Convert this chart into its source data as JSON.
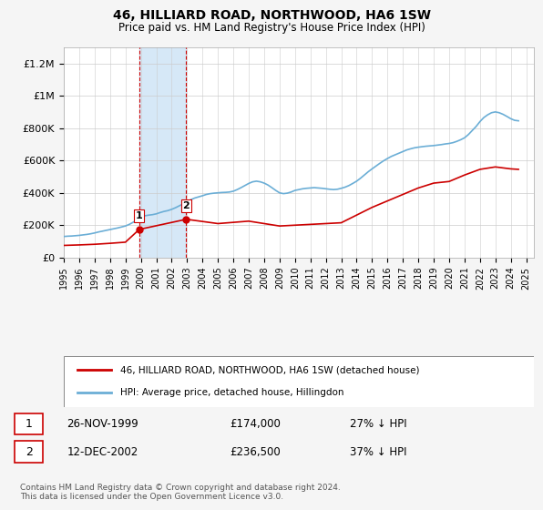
{
  "title": "46, HILLIARD ROAD, NORTHWOOD, HA6 1SW",
  "subtitle": "Price paid vs. HM Land Registry's House Price Index (HPI)",
  "ylabel_ticks": [
    "£0",
    "£200K",
    "£400K",
    "£600K",
    "£800K",
    "£1M",
    "£1.2M"
  ],
  "ytick_vals": [
    0,
    200000,
    400000,
    600000,
    800000,
    1000000,
    1200000
  ],
  "ylim": [
    0,
    1300000
  ],
  "xlim_start": 1995.0,
  "xlim_end": 2025.5,
  "transaction1": {
    "date_num": 1999.9,
    "price": 174000,
    "label": "1",
    "date_str": "26-NOV-1999",
    "price_str": "£174,000",
    "pct_str": "27% ↓ HPI"
  },
  "transaction2": {
    "date_num": 2002.95,
    "price": 236500,
    "label": "2",
    "date_str": "12-DEC-2002",
    "price_str": "£236,500",
    "pct_str": "37% ↓ HPI"
  },
  "shaded_x_start": 1999.9,
  "shaded_x_end": 2002.95,
  "legend_line1": "46, HILLIARD ROAD, NORTHWOOD, HA6 1SW (detached house)",
  "legend_line2": "HPI: Average price, detached house, Hillingdon",
  "footer": "Contains HM Land Registry data © Crown copyright and database right 2024.\nThis data is licensed under the Open Government Licence v3.0.",
  "hpi_color": "#6baed6",
  "price_color": "#cc0000",
  "shaded_color": "#d6e8f7",
  "shaded_border_color": "#cc0000",
  "background_color": "#f5f5f5",
  "plot_background": "#ffffff",
  "grid_color": "#cccccc",
  "hpi_data_x": [
    1995.0,
    1995.25,
    1995.5,
    1995.75,
    1996.0,
    1996.25,
    1996.5,
    1996.75,
    1997.0,
    1997.25,
    1997.5,
    1997.75,
    1998.0,
    1998.25,
    1998.5,
    1998.75,
    1999.0,
    1999.25,
    1999.5,
    1999.75,
    2000.0,
    2000.25,
    2000.5,
    2000.75,
    2001.0,
    2001.25,
    2001.5,
    2001.75,
    2002.0,
    2002.25,
    2002.5,
    2002.75,
    2003.0,
    2003.25,
    2003.5,
    2003.75,
    2004.0,
    2004.25,
    2004.5,
    2004.75,
    2005.0,
    2005.25,
    2005.5,
    2005.75,
    2006.0,
    2006.25,
    2006.5,
    2006.75,
    2007.0,
    2007.25,
    2007.5,
    2007.75,
    2008.0,
    2008.25,
    2008.5,
    2008.75,
    2009.0,
    2009.25,
    2009.5,
    2009.75,
    2010.0,
    2010.25,
    2010.5,
    2010.75,
    2011.0,
    2011.25,
    2011.5,
    2011.75,
    2012.0,
    2012.25,
    2012.5,
    2012.75,
    2013.0,
    2013.25,
    2013.5,
    2013.75,
    2014.0,
    2014.25,
    2014.5,
    2014.75,
    2015.0,
    2015.25,
    2015.5,
    2015.75,
    2016.0,
    2016.25,
    2016.5,
    2016.75,
    2017.0,
    2017.25,
    2017.5,
    2017.75,
    2018.0,
    2018.25,
    2018.5,
    2018.75,
    2019.0,
    2019.25,
    2019.5,
    2019.75,
    2020.0,
    2020.25,
    2020.5,
    2020.75,
    2021.0,
    2021.25,
    2021.5,
    2021.75,
    2022.0,
    2022.25,
    2022.5,
    2022.75,
    2023.0,
    2023.25,
    2023.5,
    2023.75,
    2024.0,
    2024.25,
    2024.5
  ],
  "hpi_data_y": [
    130000,
    132000,
    133000,
    135000,
    137000,
    140000,
    143000,
    147000,
    152000,
    158000,
    163000,
    168000,
    173000,
    178000,
    183000,
    189000,
    195000,
    205000,
    218000,
    232000,
    248000,
    258000,
    262000,
    265000,
    270000,
    278000,
    285000,
    290000,
    298000,
    308000,
    320000,
    332000,
    345000,
    358000,
    368000,
    375000,
    382000,
    390000,
    395000,
    398000,
    400000,
    402000,
    403000,
    405000,
    410000,
    420000,
    432000,
    445000,
    458000,
    468000,
    472000,
    468000,
    460000,
    448000,
    432000,
    415000,
    400000,
    395000,
    398000,
    405000,
    415000,
    420000,
    425000,
    428000,
    430000,
    432000,
    430000,
    428000,
    425000,
    422000,
    420000,
    422000,
    428000,
    435000,
    445000,
    458000,
    472000,
    490000,
    510000,
    530000,
    548000,
    565000,
    582000,
    598000,
    612000,
    625000,
    635000,
    645000,
    655000,
    665000,
    672000,
    678000,
    682000,
    685000,
    688000,
    690000,
    692000,
    695000,
    698000,
    702000,
    705000,
    710000,
    718000,
    728000,
    740000,
    760000,
    785000,
    810000,
    840000,
    865000,
    882000,
    895000,
    900000,
    895000,
    885000,
    872000,
    858000,
    848000,
    845000
  ],
  "price_data_x": [
    1995.0,
    1996.0,
    1997.0,
    1998.0,
    1999.0,
    1999.9,
    2002.95,
    2005.0,
    2007.0,
    2009.0,
    2011.0,
    2013.0,
    2015.0,
    2017.0,
    2018.0,
    2019.0,
    2020.0,
    2021.0,
    2022.0,
    2023.0,
    2024.0,
    2024.5
  ],
  "price_data_y": [
    75000,
    78000,
    82000,
    88000,
    95000,
    174000,
    236500,
    210000,
    225000,
    195000,
    205000,
    215000,
    310000,
    390000,
    430000,
    460000,
    470000,
    510000,
    545000,
    560000,
    548000,
    545000
  ],
  "xtick_years": [
    1995,
    1996,
    1997,
    1998,
    1999,
    2000,
    2001,
    2002,
    2003,
    2004,
    2005,
    2006,
    2007,
    2008,
    2009,
    2010,
    2011,
    2012,
    2013,
    2014,
    2015,
    2016,
    2017,
    2018,
    2019,
    2020,
    2021,
    2022,
    2023,
    2024,
    2025
  ]
}
